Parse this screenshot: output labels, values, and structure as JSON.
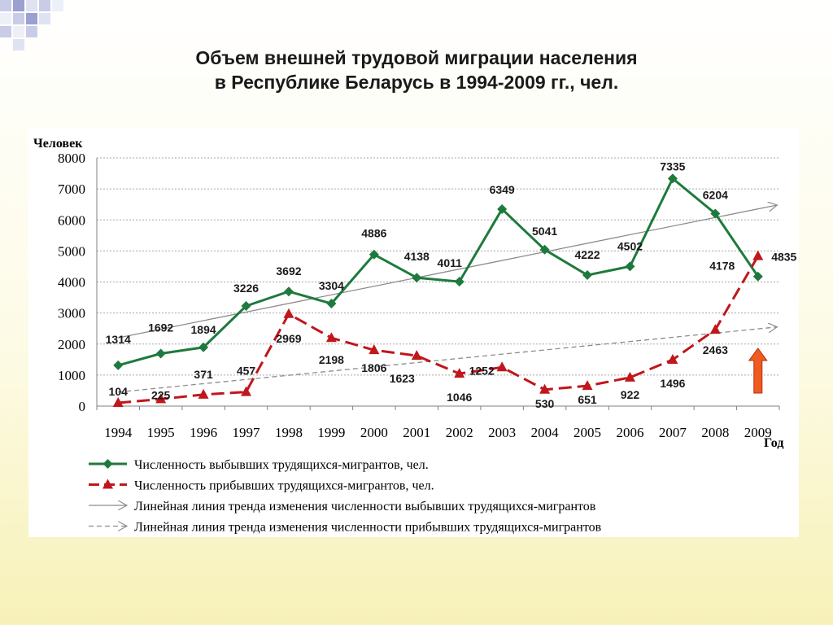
{
  "title": {
    "line1": "Объем внешней трудовой миграции населения",
    "line2": "в Республике Беларусь в 1994-2009 гг., чел."
  },
  "chart_data": {
    "type": "line",
    "categories": [
      "1994",
      "1995",
      "1996",
      "1997",
      "1998",
      "1999",
      "2000",
      "2001",
      "2002",
      "2003",
      "2004",
      "2005",
      "2006",
      "2007",
      "2008",
      "2009"
    ],
    "ylabel": "Человек",
    "xlabel": "Год",
    "ylim": [
      0,
      8000
    ],
    "yticks": [
      0,
      1000,
      2000,
      3000,
      4000,
      5000,
      6000,
      7000,
      8000
    ],
    "grid": "horizontal-dotted",
    "legend_position": "bottom",
    "series": [
      {
        "name": "Численность выбывших трудящихся-мигрантов, чел.",
        "color": "#1e7a3c",
        "marker": "diamond",
        "values": [
          1314,
          1692,
          1894,
          3226,
          3692,
          3304,
          4886,
          4138,
          4011,
          6349,
          5041,
          4222,
          4502,
          7335,
          6204,
          4178
        ]
      },
      {
        "name": "Численность прибывших трудящихся-мигрантов, чел.",
        "color": "#c0161c",
        "marker": "triangle",
        "dash": "dashed",
        "values": [
          104,
          225,
          371,
          457,
          2969,
          2198,
          1806,
          1623,
          1046,
          1252,
          530,
          651,
          922,
          1496,
          2463,
          4835
        ]
      }
    ],
    "trendlines": [
      {
        "name": "Линейная линия тренда изменения численности выбывших трудящихся-мигрантов",
        "color": "#8c8c8c",
        "style": "solid",
        "start": [
          1994,
          2200
        ],
        "end": [
          2010,
          6480
        ]
      },
      {
        "name": "Линейная линия тренда изменения численности прибывших трудящихся-мигрантов",
        "color": "#8c8c8c",
        "style": "dashed",
        "start": [
          1994,
          450
        ],
        "end": [
          2010,
          2550
        ]
      }
    ]
  },
  "colors": {
    "arrow_fill": "#f05a1e",
    "arrow_stroke": "#b03010"
  }
}
